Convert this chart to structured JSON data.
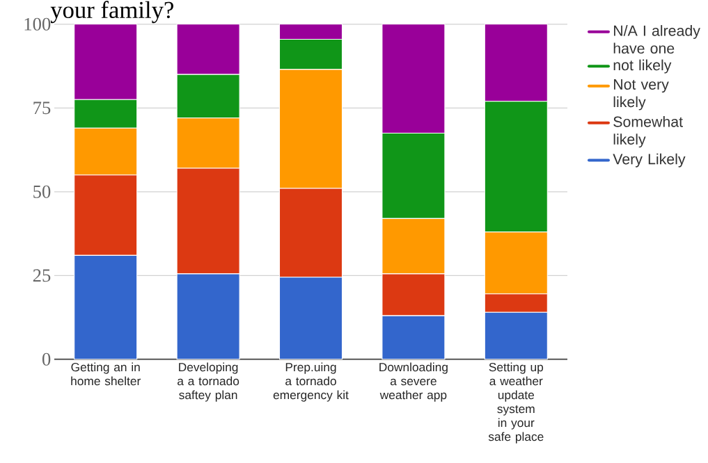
{
  "chart_data": {
    "type": "bar",
    "title": "your family?",
    "stacked": true,
    "categories": [
      "Getting an in home shelter",
      "Developing a a tornado saftey plan",
      "Prep.uing a tornado emergency kit",
      "Downloading a severe weather app",
      "Setting up a weather update system in your safe place"
    ],
    "series": [
      {
        "name": "Very Likely",
        "color": "#3366cc",
        "values": [
          31,
          25.5,
          24.5,
          13,
          14
        ]
      },
      {
        "name": "Somewhat likely",
        "color": "#dc3912",
        "values": [
          24,
          31.5,
          26.5,
          12.5,
          5.5
        ]
      },
      {
        "name": "Not very likely",
        "color": "#ff9900",
        "values": [
          14,
          15,
          35.5,
          16.5,
          18.5
        ]
      },
      {
        "name": "not likely",
        "color": "#109618",
        "values": [
          8.5,
          13,
          9,
          25.5,
          39
        ]
      },
      {
        "name": "N/A I already have one",
        "color": "#990099",
        "values": [
          22.5,
          15,
          4.5,
          32.5,
          23
        ]
      }
    ],
    "ylim": [
      0,
      100
    ],
    "yticks": [
      0,
      25,
      50,
      75,
      100
    ],
    "grid": "y",
    "legend": "right"
  }
}
